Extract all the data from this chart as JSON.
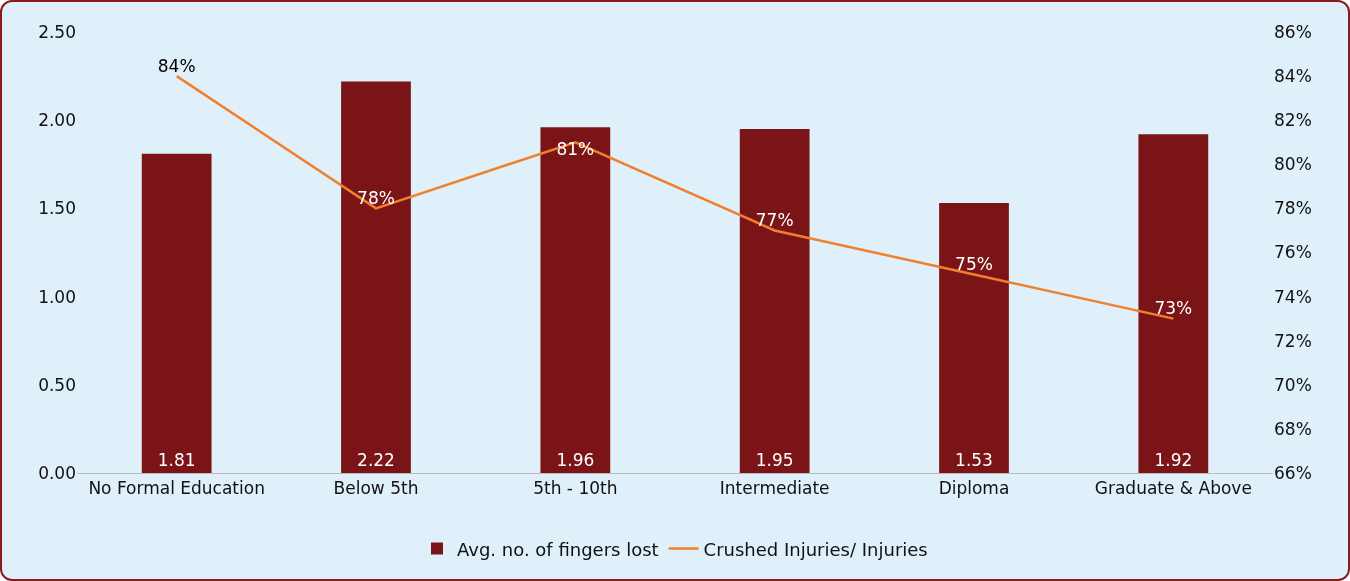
{
  "chart_data": {
    "type": "bar",
    "categories": [
      "No Formal Education",
      "Below 5th",
      "5th - 10th",
      "Intermediate",
      "Diploma",
      "Graduate & Above"
    ],
    "series": [
      {
        "name": "Avg. no. of fingers lost",
        "color": "#7b1416",
        "values": [
          1.81,
          2.22,
          1.96,
          1.95,
          1.53,
          1.92
        ],
        "value_labels": [
          "1.81",
          "2.22",
          "1.96",
          "1.95",
          "1.53",
          "1.92"
        ]
      },
      {
        "name": "Crushed Injuries/ Injuries",
        "type": "line",
        "axis": "y2",
        "color": "#f0802e",
        "values": [
          84,
          78,
          81,
          77,
          75,
          73
        ],
        "value_labels": [
          "84%",
          "78%",
          "81%",
          "77%",
          "75%",
          "73%"
        ]
      }
    ],
    "ylim": [
      0,
      2.5
    ],
    "yticks": [
      {
        "value": 0,
        "label": "0.00"
      },
      {
        "value": 0.5,
        "label": "0.50"
      },
      {
        "value": 1,
        "label": "1.00"
      },
      {
        "value": 1.5,
        "label": "1.50"
      },
      {
        "value": 2,
        "label": "2.00"
      },
      {
        "value": 2.5,
        "label": "2.50"
      }
    ],
    "y2lim": [
      66,
      86
    ],
    "y2ticks": [
      {
        "value": 66,
        "label": "66%"
      },
      {
        "value": 68,
        "label": "68%"
      },
      {
        "value": 70,
        "label": "70%"
      },
      {
        "value": 72,
        "label": "72%"
      },
      {
        "value": 74,
        "label": "74%"
      },
      {
        "value": 76,
        "label": "76%"
      },
      {
        "value": 78,
        "label": "78%"
      },
      {
        "value": 80,
        "label": "80%"
      },
      {
        "value": 82,
        "label": "82%"
      },
      {
        "value": 84,
        "label": "84%"
      },
      {
        "value": 86,
        "label": "86%"
      }
    ],
    "grid": false,
    "legend": "bottom",
    "marker": "none"
  }
}
